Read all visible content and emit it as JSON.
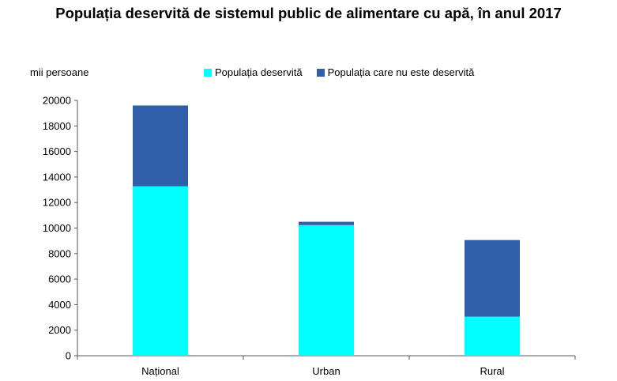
{
  "chart_data": {
    "type": "bar",
    "stacked": true,
    "title": "Populația deservită de sistemul public de alimentare cu apă, în anul 2017",
    "ylabel": "mii persoane",
    "categories": [
      "Național",
      "Urban",
      "Rural"
    ],
    "series": [
      {
        "name": "Populația deservită",
        "color": "#00FFFF",
        "values": [
          13270,
          10230,
          3060
        ]
      },
      {
        "name": "Populația care nu este deservită",
        "color": "#2E5FA8",
        "values": [
          6330,
          260,
          6000
        ]
      }
    ],
    "ylim": [
      0,
      20000
    ],
    "yticks": [
      0,
      2000,
      4000,
      6000,
      8000,
      10000,
      12000,
      14000,
      16000,
      18000,
      20000
    ],
    "legend_position": "top",
    "grid": false
  }
}
